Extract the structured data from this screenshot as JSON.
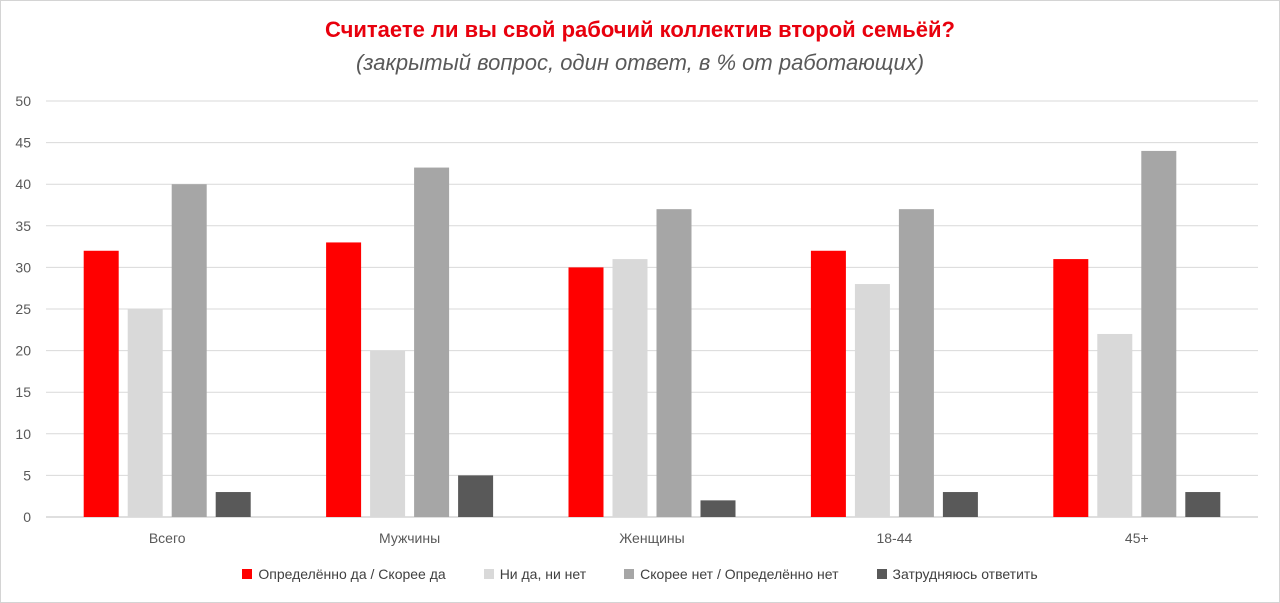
{
  "chart_data": {
    "type": "bar",
    "title": "Считаете ли вы свой рабочий коллектив второй семьёй?",
    "subtitle": "(закрытый вопрос, один ответ, в % от работающих)",
    "categories": [
      "Всего",
      "Мужчины",
      "Женщины",
      "18-44",
      "45+"
    ],
    "series": [
      {
        "name": "Определённо да / Скорее да",
        "color": "#ff0000",
        "values": [
          32,
          33,
          30,
          32,
          31
        ]
      },
      {
        "name": "Ни да, ни нет",
        "color": "#d9d9d9",
        "values": [
          25,
          20,
          31,
          28,
          22
        ]
      },
      {
        "name": "Скорее нет / Определённо нет",
        "color": "#a6a6a6",
        "values": [
          40,
          42,
          37,
          37,
          44
        ]
      },
      {
        "name": "Затрудняюсь ответить",
        "color": "#595959",
        "values": [
          3,
          5,
          2,
          3,
          3
        ]
      }
    ],
    "ylim": [
      0,
      50
    ],
    "yticks": [
      "0",
      "5",
      "10",
      "15",
      "20",
      "25",
      "30",
      "35",
      "40",
      "45",
      "50"
    ],
    "grid": true,
    "legend": "bottom"
  }
}
